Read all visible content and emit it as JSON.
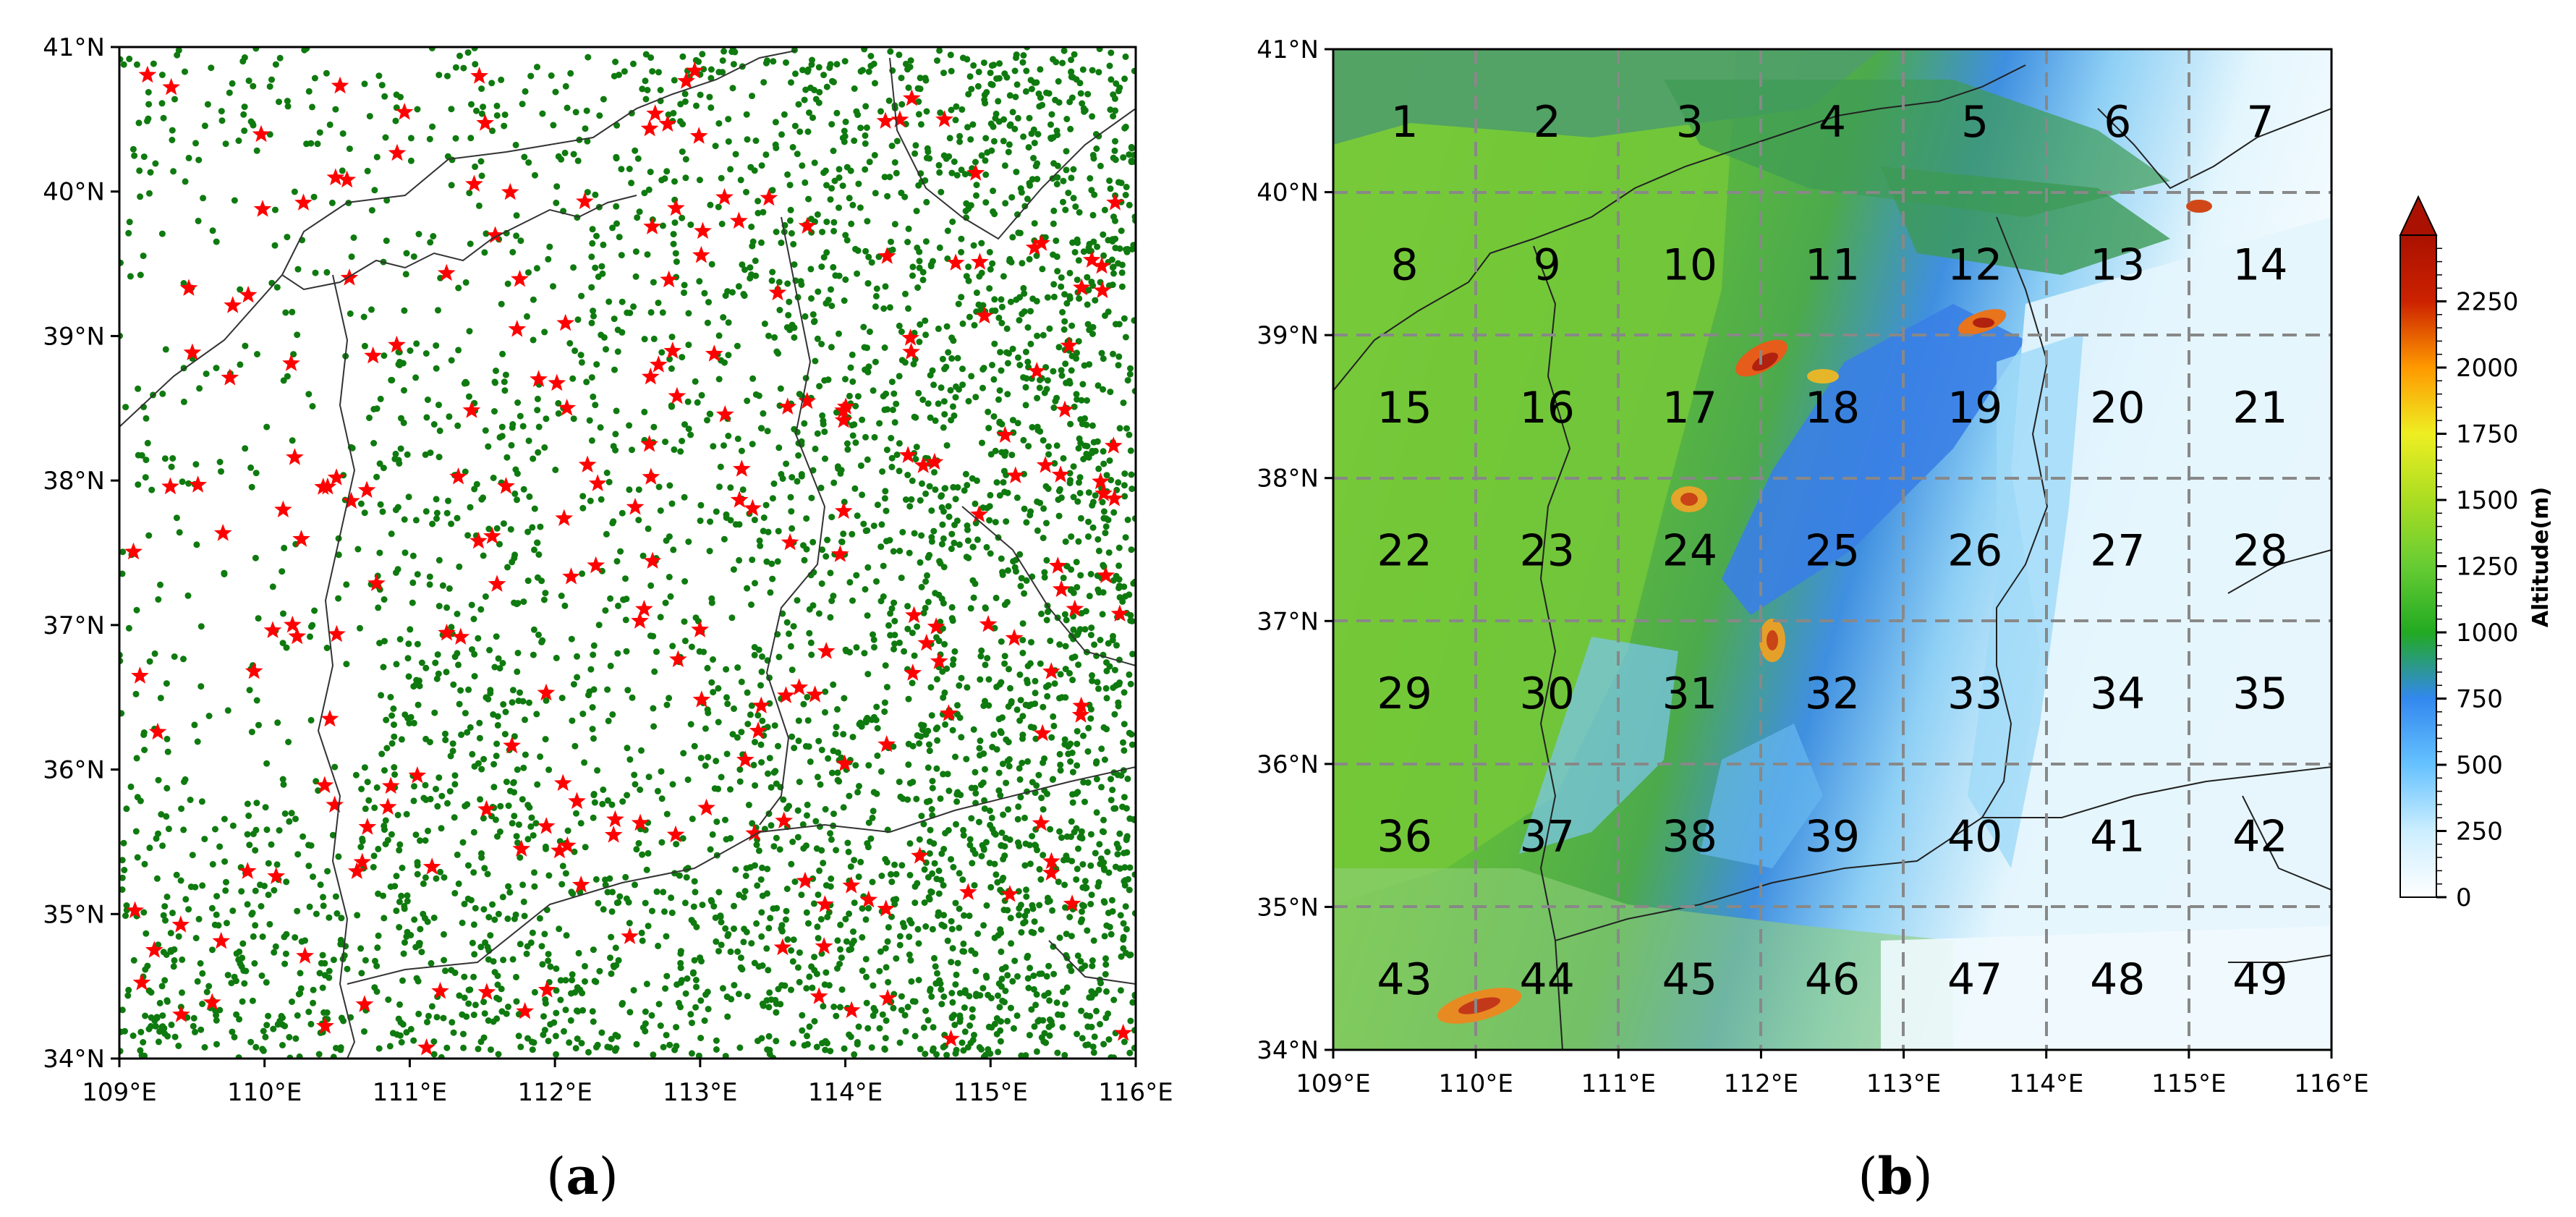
{
  "panels": [
    {
      "id": "a",
      "label": "a",
      "x_ticks": [
        "109°E",
        "110°E",
        "111°E",
        "112°E",
        "113°E",
        "114°E",
        "115°E",
        "116°E"
      ],
      "y_ticks": [
        "34°N",
        "35°N",
        "36°N",
        "37°N",
        "38°N",
        "39°N",
        "40°N",
        "41°N"
      ],
      "layers": [
        {
          "name": "weather-stations",
          "marker": "dot",
          "color": "#0f7a0f"
        },
        {
          "name": "national-stations",
          "marker": "star",
          "color": "#ff0000"
        }
      ]
    },
    {
      "id": "b",
      "label": "b",
      "x_ticks": [
        "109°E",
        "110°E",
        "111°E",
        "112°E",
        "113°E",
        "114°E",
        "115°E",
        "116°E"
      ],
      "y_ticks": [
        "34°N",
        "35°N",
        "36°N",
        "37°N",
        "38°N",
        "39°N",
        "40°N",
        "41°N"
      ],
      "grid_cells": [
        "1",
        "2",
        "3",
        "4",
        "5",
        "6",
        "7",
        "8",
        "9",
        "10",
        "11",
        "12",
        "13",
        "14",
        "15",
        "16",
        "17",
        "18",
        "19",
        "20",
        "21",
        "22",
        "23",
        "24",
        "25",
        "26",
        "27",
        "28",
        "29",
        "30",
        "31",
        "32",
        "33",
        "34",
        "35",
        "36",
        "37",
        "38",
        "39",
        "40",
        "41",
        "42",
        "43",
        "44",
        "45",
        "46",
        "47",
        "48",
        "49"
      ],
      "colorbar": {
        "label": "Altitude(m)",
        "ticks": [
          "0",
          "250",
          "500",
          "750",
          "1000",
          "1250",
          "1500",
          "1750",
          "2000",
          "2250"
        ],
        "colors": [
          "#ffffff",
          "#cceeff",
          "#66c2ff",
          "#3388ee",
          "#22aa22",
          "#66cc33",
          "#aadd22",
          "#eeee22",
          "#ff9900",
          "#cc2200",
          "#aa1100"
        ]
      }
    }
  ]
}
